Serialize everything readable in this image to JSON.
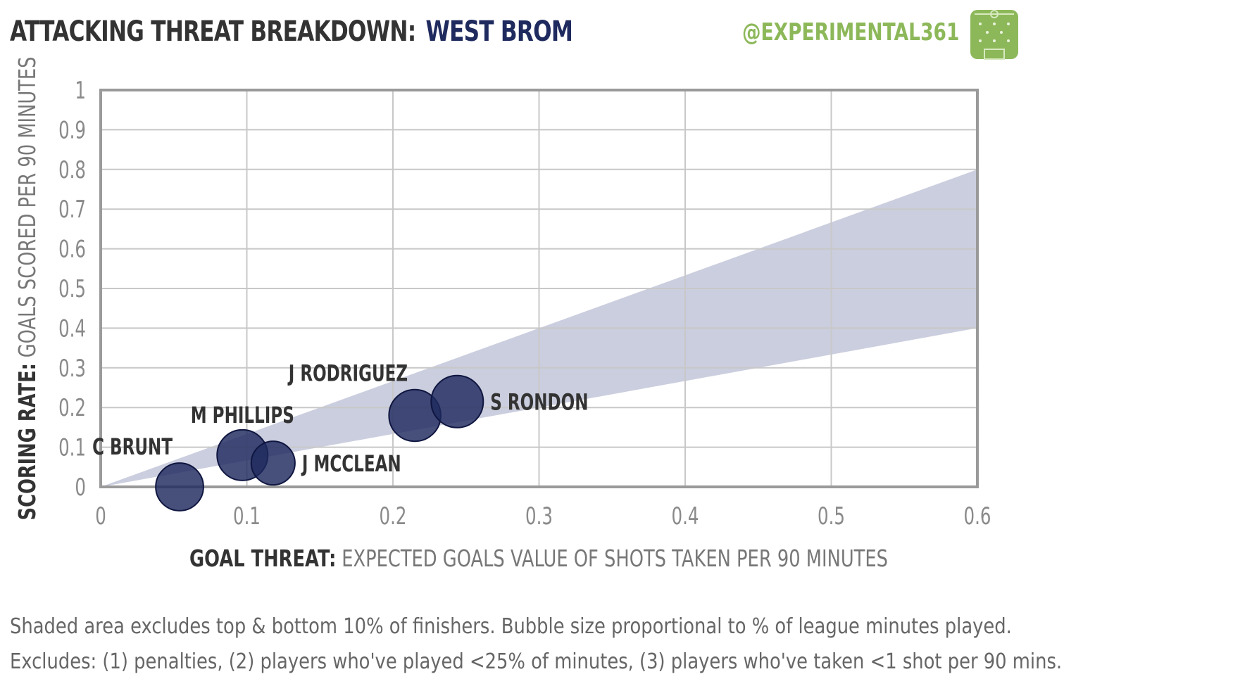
{
  "header": {
    "title_prefix": "ATTACKING THREAT BREAKDOWN:",
    "title_team": "WEST BROM",
    "handle": "@EXPERIMENTAL361",
    "logo_icon": "pitch-logo-icon"
  },
  "colors": {
    "team": "#1f2a5e",
    "bubble": "#1f2a5e",
    "band": "#b9bed3",
    "handle": "#8db85a",
    "grid": "#c8c8c8",
    "axis": "#9a9a9a"
  },
  "chart_data": {
    "type": "scatter",
    "title": "ATTACKING THREAT BREAKDOWN: WEST BROM",
    "xlabel_bold": "GOAL THREAT:",
    "xlabel_rest": "EXPECTED GOALS VALUE OF SHOTS TAKEN PER 90 MINUTES",
    "ylabel_bold": "SCORING RATE:",
    "ylabel_rest": "GOALS SCORED PER 90 MINUTES",
    "xlim": [
      0,
      0.6
    ],
    "ylim": [
      0,
      1
    ],
    "x_ticks": [
      "0",
      "0.1",
      "0.2",
      "0.3",
      "0.4",
      "0.5",
      "0.6"
    ],
    "y_ticks": [
      "0",
      "0.1",
      "0.2",
      "0.3",
      "0.4",
      "0.5",
      "0.6",
      "0.7",
      "0.8",
      "0.9",
      "1"
    ],
    "grid": true,
    "band": {
      "lower_slope": 0.667,
      "upper_slope": 1.333
    },
    "points": [
      {
        "label": "C BRUNT",
        "x": 0.054,
        "y": 0.0,
        "size": 0.62,
        "label_side": "above-left"
      },
      {
        "label": "M PHILLIPS",
        "x": 0.097,
        "y": 0.08,
        "size": 0.7,
        "label_side": "above"
      },
      {
        "label": "J MCCLEAN",
        "x": 0.118,
        "y": 0.06,
        "size": 0.52,
        "label_side": "right"
      },
      {
        "label": "J RODRIGUEZ",
        "x": 0.215,
        "y": 0.18,
        "size": 0.73,
        "label_side": "above-left"
      },
      {
        "label": "S RONDON",
        "x": 0.244,
        "y": 0.215,
        "size": 0.74,
        "label_side": "right"
      }
    ]
  },
  "footer": {
    "note_1": "Shaded area excludes top & bottom 10% of finishers. Bubble size proportional to % of league minutes played.",
    "note_2": "Excludes: (1) penalties, (2) players who've played <25% of minutes, (3) players who've taken <1 shot per 90 mins."
  }
}
